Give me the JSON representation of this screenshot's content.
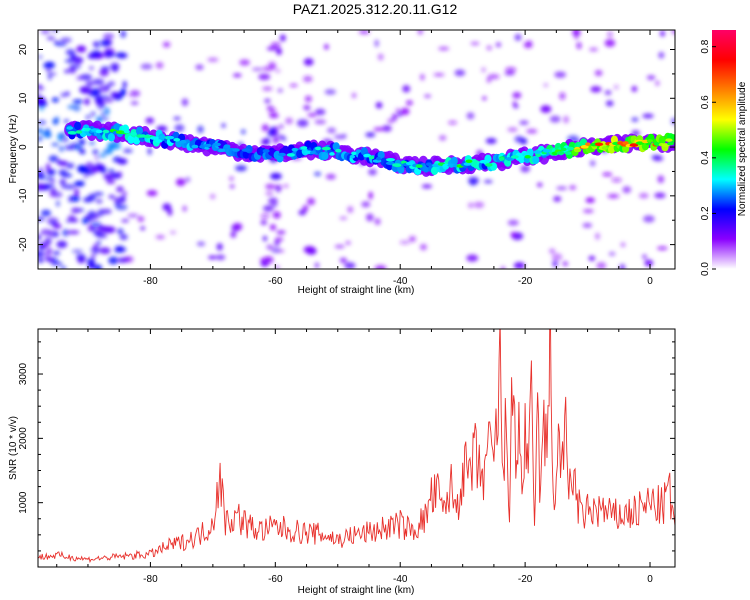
{
  "title": "PAZ1.2025.312.20.11.G12",
  "colors": {
    "snr_line": "#e8312c",
    "ridge_low": "#7a00ff",
    "ridge_high": "#ff0000",
    "background": "#ffffff"
  },
  "chart_data": [
    {
      "type": "heatmap",
      "name": "spectrogram",
      "xlabel": "Height of straight line (km)",
      "ylabel": "Frequency (Hz)",
      "xlim": [
        -98,
        4
      ],
      "ylim": [
        -25,
        24
      ],
      "xticks": [
        -80,
        -60,
        -40,
        -20,
        0
      ],
      "yticks": [
        20,
        10,
        0,
        -10,
        -20
      ],
      "xtick_labels": [
        "-80",
        "-60",
        "-40",
        "-20",
        "0"
      ],
      "ytick_labels": [
        "20",
        "10",
        "0",
        "-10",
        "-20"
      ],
      "ridge": {
        "x": [
          -92,
          -85,
          -80,
          -75,
          -70,
          -65,
          -60,
          -55,
          -50,
          -45,
          -40,
          -35,
          -30,
          -25,
          -20,
          -15,
          -10,
          -5,
          0,
          4
        ],
        "freq": [
          3.5,
          3,
          2,
          1,
          0,
          -1,
          -1.5,
          -0.5,
          -1,
          -2,
          -3.5,
          -4,
          -3.5,
          -3,
          -2,
          -1,
          0,
          0.5,
          1,
          1
        ],
        "amplitude": [
          0.45,
          0.5,
          0.45,
          0.4,
          0.35,
          0.3,
          0.35,
          0.4,
          0.4,
          0.4,
          0.45,
          0.45,
          0.5,
          0.45,
          0.5,
          0.6,
          0.8,
          0.85,
          0.85,
          0.75
        ]
      },
      "colorbar": {
        "label": "Normalized spectral amplitude",
        "ticks": [
          0.0,
          0.2,
          0.4,
          0.6,
          0.8
        ],
        "tick_labels": [
          "0.0",
          "0.2",
          "0.4",
          "0.6",
          "0.8"
        ],
        "range": [
          0,
          0.86
        ],
        "stops": [
          "#ffffff",
          "#8a00ff",
          "#0000ff",
          "#00ffff",
          "#00ff00",
          "#ffff00",
          "#ff7f00",
          "#ff0000",
          "#ff0066"
        ]
      }
    },
    {
      "type": "line",
      "name": "snr",
      "xlabel": "Height of straight line (km)",
      "ylabel": "SNR (10 * v/v)",
      "xlim": [
        -98,
        4
      ],
      "ylim": [
        0,
        3700
      ],
      "xticks": [
        -80,
        -60,
        -40,
        -20,
        0
      ],
      "yticks": [
        1000,
        2000,
        3000
      ],
      "xtick_labels": [
        "-80",
        "-60",
        "-40",
        "-20",
        "0"
      ],
      "ytick_labels": [
        "1000",
        "2000",
        "3000"
      ],
      "x": [
        -98,
        -95,
        -90,
        -85,
        -80,
        -77,
        -75,
        -72,
        -70,
        -69,
        -68,
        -66,
        -64,
        -62,
        -60,
        -58,
        -56,
        -54,
        -52,
        -50,
        -48,
        -46,
        -44,
        -42,
        -40,
        -38,
        -36,
        -35,
        -34,
        -33,
        -32,
        -31,
        -30,
        -29,
        -28,
        -27,
        -26,
        -25,
        -24.5,
        -24,
        -23.5,
        -23,
        -22.5,
        -22,
        -21.5,
        -21,
        -20.5,
        -20,
        -19.5,
        -19,
        -18.5,
        -18,
        -17.5,
        -17,
        -16.5,
        -16,
        -15.5,
        -15,
        -14.5,
        -14,
        -13.5,
        -13,
        -12.5,
        -12,
        -11,
        -10,
        -8,
        -6,
        -4,
        -2,
        0,
        2,
        3,
        4
      ],
      "snr": [
        150,
        180,
        120,
        160,
        200,
        330,
        380,
        500,
        680,
        1440,
        720,
        780,
        620,
        560,
        620,
        580,
        540,
        520,
        500,
        420,
        480,
        520,
        560,
        620,
        660,
        560,
        760,
        1080,
        1120,
        820,
        1280,
        900,
        1500,
        1400,
        1700,
        1320,
        1800,
        1600,
        2200,
        3100,
        1200,
        2400,
        900,
        2900,
        1400,
        2500,
        1000,
        2200,
        1200,
        2600,
        800,
        2300,
        1000,
        2500,
        1500,
        3650,
        1100,
        1400,
        2000,
        1600,
        2000,
        1200,
        1600,
        1200,
        760,
        860,
        900,
        780,
        820,
        860,
        1000,
        920,
        1200,
        640
      ]
    }
  ]
}
